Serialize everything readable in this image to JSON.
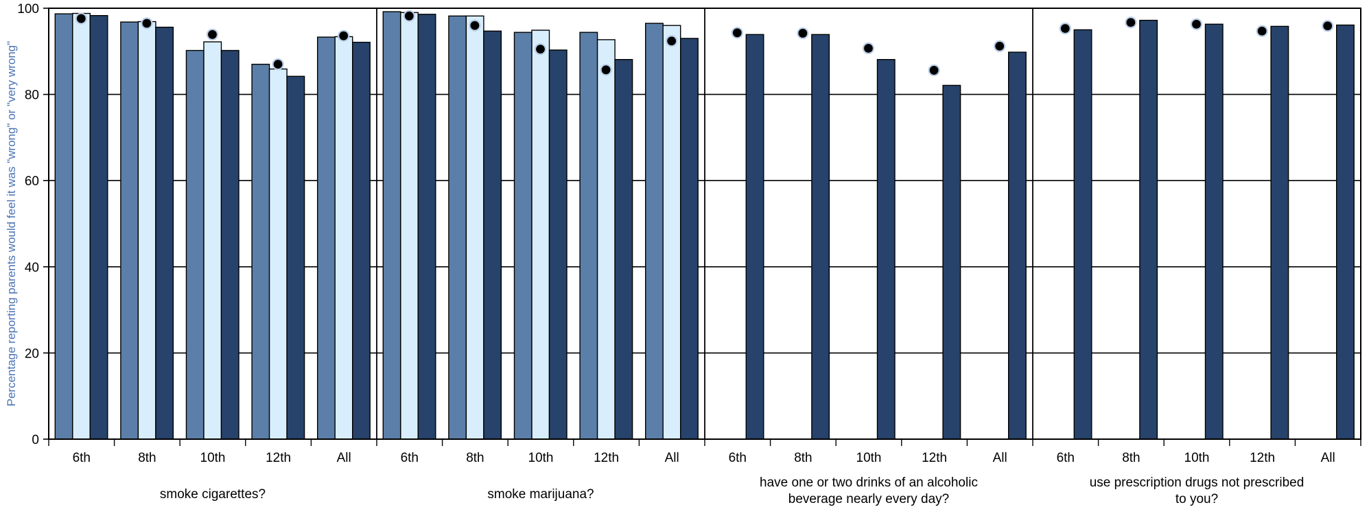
{
  "chart_data": {
    "type": "bar",
    "ylabel": "Percentage reporting parents would feel it was \"wrong\" or \"very wrong\"",
    "ylim": [
      0,
      100
    ],
    "yticks": [
      0,
      20,
      40,
      60,
      80,
      100
    ],
    "grid": true,
    "categories": [
      {
        "label_lines": [
          "smoke cigarettes?"
        ],
        "grades": [
          "6th",
          "8th",
          "10th",
          "12th",
          "All"
        ],
        "series": [
          {
            "values": [
              98.7,
              96.8,
              90.2,
              87.0,
              93.3
            ],
            "color": "#5b7fa8"
          },
          {
            "values": [
              98.8,
              96.9,
              92.2,
              85.9,
              93.4
            ],
            "color": "#d9eefc"
          },
          {
            "values": [
              98.3,
              95.6,
              90.2,
              84.2,
              92.1
            ],
            "color": "#27436b"
          }
        ],
        "markers": [
          97.6,
          96.5,
          93.9,
          87.0,
          93.6
        ]
      },
      {
        "label_lines": [
          "smoke marijuana?"
        ],
        "grades": [
          "6th",
          "8th",
          "10th",
          "12th",
          "All"
        ],
        "series": [
          {
            "values": [
              99.2,
              98.2,
              94.4,
              94.4,
              96.5
            ],
            "color": "#5b7fa8"
          },
          {
            "values": [
              99.0,
              98.2,
              94.9,
              92.7,
              96.0
            ],
            "color": "#d9eefc"
          },
          {
            "values": [
              98.6,
              94.7,
              90.3,
              88.1,
              93.0
            ],
            "color": "#27436b"
          }
        ],
        "markers": [
          98.2,
          96.0,
          90.5,
          85.7,
          92.4
        ]
      },
      {
        "label_lines": [
          "have one or two drinks of an alcoholic",
          "beverage nearly every day?"
        ],
        "grades": [
          "6th",
          "8th",
          "10th",
          "12th",
          "All"
        ],
        "series": [
          {
            "values": [
              null,
              null,
              null,
              null,
              null
            ],
            "color": "#5b7fa8"
          },
          {
            "values": [
              null,
              null,
              null,
              null,
              null
            ],
            "color": "#d9eefc"
          },
          {
            "values": [
              93.9,
              93.9,
              88.1,
              82.1,
              89.8
            ],
            "color": "#27436b"
          }
        ],
        "markers": [
          94.3,
          94.2,
          90.7,
          85.6,
          91.2
        ]
      },
      {
        "label_lines": [
          "use prescription drugs not prescribed",
          "to you?"
        ],
        "grades": [
          "6th",
          "8th",
          "10th",
          "12th",
          "All"
        ],
        "series": [
          {
            "values": [
              null,
              null,
              null,
              null,
              null
            ],
            "color": "#5b7fa8"
          },
          {
            "values": [
              null,
              null,
              null,
              null,
              null
            ],
            "color": "#d9eefc"
          },
          {
            "values": [
              95.0,
              97.2,
              96.3,
              95.8,
              96.1
            ],
            "color": "#27436b"
          }
        ],
        "markers": [
          95.3,
          96.7,
          96.3,
          94.7,
          95.9
        ]
      }
    ]
  }
}
